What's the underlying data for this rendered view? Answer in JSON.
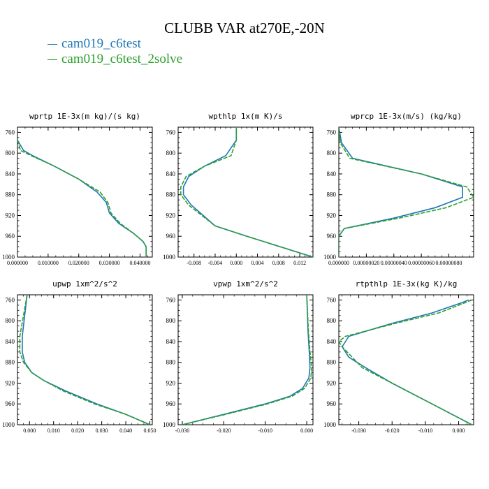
{
  "title": "CLUBB VAR at270E,-20N",
  "legend": [
    {
      "name": "cam019_c6test",
      "color": "#1f77b4"
    },
    {
      "name": "cam019_c6test_2solve",
      "color": "#2ca02c"
    }
  ],
  "chart_data": [
    {
      "type": "line",
      "title": "wprtp  1E-3x(m kg)/(s kg)",
      "xlim": [
        0.0,
        0.044
      ],
      "ylim": [
        1000,
        750
      ],
      "xticks": [
        "0.000000",
        "0.010000",
        "0.020000",
        "0.030000",
        "0.040000"
      ],
      "xtick_values": [
        0.0,
        0.01,
        0.02,
        0.03,
        0.04
      ],
      "yticks": [
        760,
        800,
        840,
        880,
        920,
        960,
        1000
      ],
      "series": [
        {
          "name": "cam019_c6test",
          "x": [
            0.0,
            0.002,
            0.005,
            0.012,
            0.02,
            0.026,
            0.029,
            0.03,
            0.033,
            0.038,
            0.041,
            0.042,
            0.042
          ],
          "y": [
            775,
            795,
            805,
            825,
            850,
            875,
            895,
            915,
            935,
            955,
            970,
            980,
            1000
          ]
        },
        {
          "name": "cam019_c6test_2solve",
          "x": [
            0.0,
            0.001,
            0.0045,
            0.012,
            0.02,
            0.027,
            0.0295,
            0.0305,
            0.0335,
            0.038,
            0.041,
            0.042,
            0.042
          ],
          "y": [
            775,
            795,
            805,
            825,
            850,
            875,
            895,
            915,
            935,
            955,
            970,
            980,
            1000
          ]
        }
      ]
    },
    {
      "type": "line",
      "title": "wpthlp  1x(m K)/s",
      "xlim": [
        -0.011,
        0.0145
      ],
      "ylim": [
        1000,
        750
      ],
      "xticks": [
        "-0.008",
        "-0.004",
        "0.000",
        "0.004",
        "0.008",
        "0.012"
      ],
      "xtick_values": [
        -0.008,
        -0.004,
        0.0,
        0.004,
        0.008,
        0.012
      ],
      "yticks": [
        760,
        800,
        840,
        880,
        920,
        960,
        1000
      ],
      "series": [
        {
          "name": "cam019_c6test",
          "x": [
            0.0,
            0.0,
            -0.002,
            -0.006,
            -0.009,
            -0.01,
            -0.01,
            -0.0085,
            -0.004,
            0.002,
            0.0145
          ],
          "y": [
            750,
            775,
            805,
            825,
            845,
            865,
            880,
            900,
            940,
            960,
            1000
          ]
        },
        {
          "name": "cam019_c6test_2solve",
          "x": [
            0.0,
            0.0,
            -0.001,
            -0.006,
            -0.0095,
            -0.0105,
            -0.0105,
            -0.009,
            -0.004,
            0.002,
            0.0145
          ],
          "y": [
            750,
            775,
            805,
            825,
            845,
            865,
            880,
            900,
            940,
            960,
            1000
          ]
        }
      ]
    },
    {
      "type": "line",
      "title": "wprcp  1E-3x(m/s) (kg/kg)",
      "xlim": [
        0.0,
        9.8e-07
      ],
      "ylim": [
        1000,
        750
      ],
      "xticks": [
        "0.000000",
        "0.00000020",
        "0.00000040",
        "0.00000060",
        "0.00000080"
      ],
      "xtick_values": [
        0.0,
        2e-07,
        4e-07,
        6e-07,
        8e-07
      ],
      "yticks": [
        760,
        800,
        840,
        880,
        920,
        960,
        1000
      ],
      "series": [
        {
          "name": "cam019_c6test",
          "x": [
            0.0,
            2e-08,
            1e-07,
            6e-07,
            9e-07,
            9e-07,
            7e-07,
            4e-07,
            4e-08,
            0.0,
            0.0
          ],
          "y": [
            750,
            780,
            810,
            840,
            865,
            885,
            905,
            925,
            945,
            960,
            1000
          ]
        },
        {
          "name": "cam019_c6test_2solve",
          "x": [
            0.0,
            1e-08,
            8e-08,
            6e-07,
            9.3e-07,
            9.8e-07,
            7.8e-07,
            4.4e-07,
            4e-08,
            0.0,
            0.0
          ],
          "y": [
            750,
            780,
            810,
            840,
            865,
            885,
            905,
            925,
            945,
            960,
            1000
          ]
        }
      ]
    },
    {
      "type": "line",
      "title": "upwp  1xm^2/s^2",
      "xlim": [
        -0.005,
        0.051
      ],
      "ylim": [
        1000,
        750
      ],
      "xticks": [
        "0.000",
        "0.010",
        "0.020",
        "0.030",
        "0.040",
        "0.050"
      ],
      "xtick_values": [
        0.0,
        0.01,
        0.02,
        0.03,
        0.04,
        0.05
      ],
      "yticks": [
        760,
        800,
        840,
        880,
        920,
        960,
        1000
      ],
      "series": [
        {
          "name": "cam019_c6test",
          "x": [
            -0.001,
            -0.002,
            -0.003,
            -0.003,
            -0.002,
            0.001,
            0.006,
            0.015,
            0.028,
            0.04,
            0.05
          ],
          "y": [
            750,
            790,
            830,
            860,
            880,
            900,
            915,
            935,
            960,
            980,
            1000
          ]
        },
        {
          "name": "cam019_c6test_2solve",
          "x": [
            -0.001,
            -0.0025,
            -0.004,
            -0.004,
            -0.0025,
            0.001,
            0.006,
            0.014,
            0.027,
            0.04,
            0.05
          ],
          "y": [
            750,
            790,
            830,
            860,
            880,
            900,
            915,
            935,
            960,
            980,
            1000
          ]
        }
      ]
    },
    {
      "type": "line",
      "title": "vpwp  1xm^2/s^2",
      "xlim": [
        -0.031,
        0.0015
      ],
      "ylim": [
        1000,
        750
      ],
      "xticks": [
        "-0.030",
        "-0.020",
        "-0.010",
        "0.000"
      ],
      "xtick_values": [
        -0.03,
        -0.02,
        -0.01,
        0.0
      ],
      "yticks": [
        760,
        800,
        840,
        880,
        920,
        960,
        1000
      ],
      "series": [
        {
          "name": "cam019_c6test",
          "x": [
            0.0,
            0.0003,
            0.0006,
            0.0008,
            0.0005,
            -0.001,
            -0.004,
            -0.01,
            -0.02,
            -0.03
          ],
          "y": [
            750,
            820,
            860,
            890,
            910,
            930,
            945,
            960,
            980,
            1000
          ]
        },
        {
          "name": "cam019_c6test_2solve",
          "x": [
            0.0,
            0.0004,
            0.0008,
            0.0012,
            0.001,
            -0.0005,
            -0.0035,
            -0.0095,
            -0.0195,
            -0.03
          ],
          "y": [
            750,
            820,
            860,
            890,
            910,
            930,
            945,
            960,
            980,
            1000
          ]
        }
      ]
    },
    {
      "type": "line",
      "title": "rtpthlp  1E-3x(kg K)/kg",
      "xlim": [
        -0.036,
        0.0045
      ],
      "ylim": [
        1000,
        750
      ],
      "xticks": [
        "-0.030",
        "-0.020",
        "-0.010",
        "0.000"
      ],
      "xtick_values": [
        -0.03,
        -0.02,
        -0.01,
        0.0
      ],
      "yticks": [
        760,
        800,
        840,
        880,
        920,
        960,
        1000
      ],
      "series": [
        {
          "name": "cam019_c6test",
          "x": [
            0.003,
            0.001,
            -0.008,
            -0.02,
            -0.033,
            -0.034,
            -0.035,
            -0.033,
            -0.028,
            -0.02,
            -0.008,
            0.004
          ],
          "y": [
            760,
            765,
            785,
            805,
            830,
            840,
            850,
            870,
            890,
            920,
            960,
            1000
          ]
        },
        {
          "name": "cam019_c6test_2solve",
          "x": [
            0.004,
            0.002,
            -0.006,
            -0.019,
            -0.034,
            -0.036,
            -0.035,
            -0.032,
            -0.029,
            -0.02,
            -0.008,
            0.004
          ],
          "y": [
            760,
            765,
            785,
            805,
            830,
            840,
            850,
            870,
            890,
            920,
            960,
            1000
          ]
        }
      ]
    }
  ]
}
